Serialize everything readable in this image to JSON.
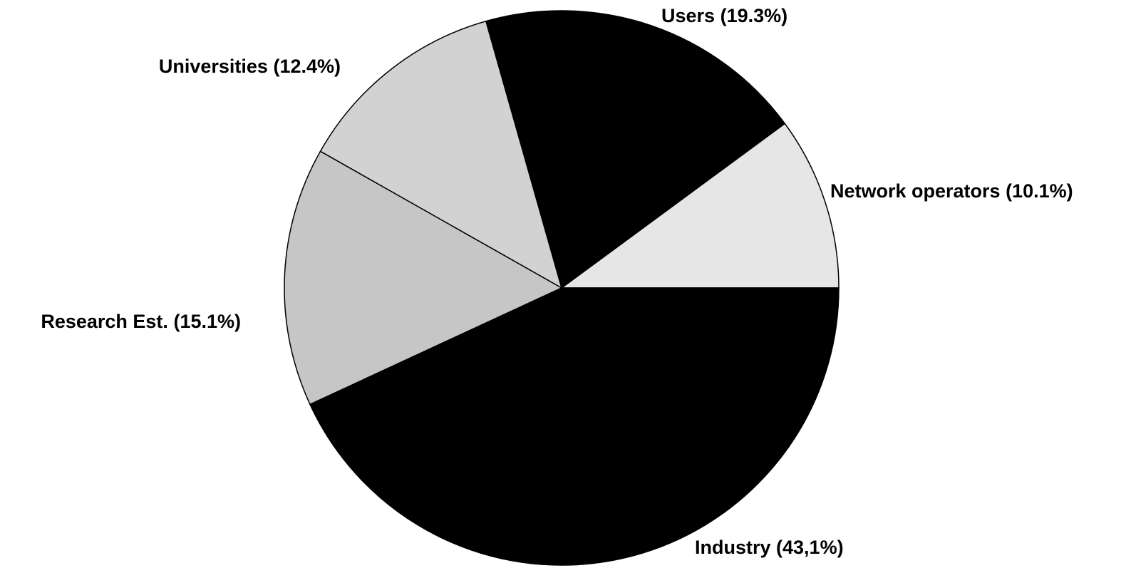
{
  "chart_data": {
    "type": "pie",
    "categories": [
      "Network operators",
      "Users",
      "Universities",
      "Research Est.",
      "Industry"
    ],
    "values": [
      10.1,
      19.3,
      12.4,
      15.1,
      43.1
    ],
    "value_labels": [
      "(10.1%)",
      "(19.3%)",
      "(12.4%)",
      "(15.1%)",
      "(43,1%)"
    ],
    "colors": [
      "#e6e6e6",
      "#000000",
      "#d2d2d2",
      "#c6c6c6",
      "#000000"
    ]
  }
}
